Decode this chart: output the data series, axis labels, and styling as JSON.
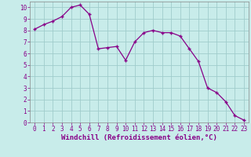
{
  "x": [
    0,
    1,
    2,
    3,
    4,
    5,
    6,
    7,
    8,
    9,
    10,
    11,
    12,
    13,
    14,
    15,
    16,
    17,
    18,
    19,
    20,
    21,
    22,
    23
  ],
  "y": [
    8.1,
    8.5,
    8.8,
    9.2,
    10.0,
    10.2,
    9.4,
    6.4,
    6.5,
    6.6,
    5.4,
    7.0,
    7.8,
    8.0,
    7.8,
    7.8,
    7.5,
    6.4,
    5.3,
    3.0,
    2.6,
    1.8,
    0.6,
    0.2
  ],
  "xlim": [
    -0.5,
    23.5
  ],
  "ylim": [
    0,
    10.5
  ],
  "xticks": [
    0,
    1,
    2,
    3,
    4,
    5,
    6,
    7,
    8,
    9,
    10,
    11,
    12,
    13,
    14,
    15,
    16,
    17,
    18,
    19,
    20,
    21,
    22,
    23
  ],
  "yticks": [
    0,
    1,
    2,
    3,
    4,
    5,
    6,
    7,
    8,
    9,
    10
  ],
  "xlabel": "Windchill (Refroidissement éolien,°C)",
  "line_color": "#880088",
  "marker": "+",
  "bg_color": "#c8ecea",
  "grid_color": "#a0cccc",
  "tick_fontsize": 5.5,
  "label_fontsize": 6.5
}
